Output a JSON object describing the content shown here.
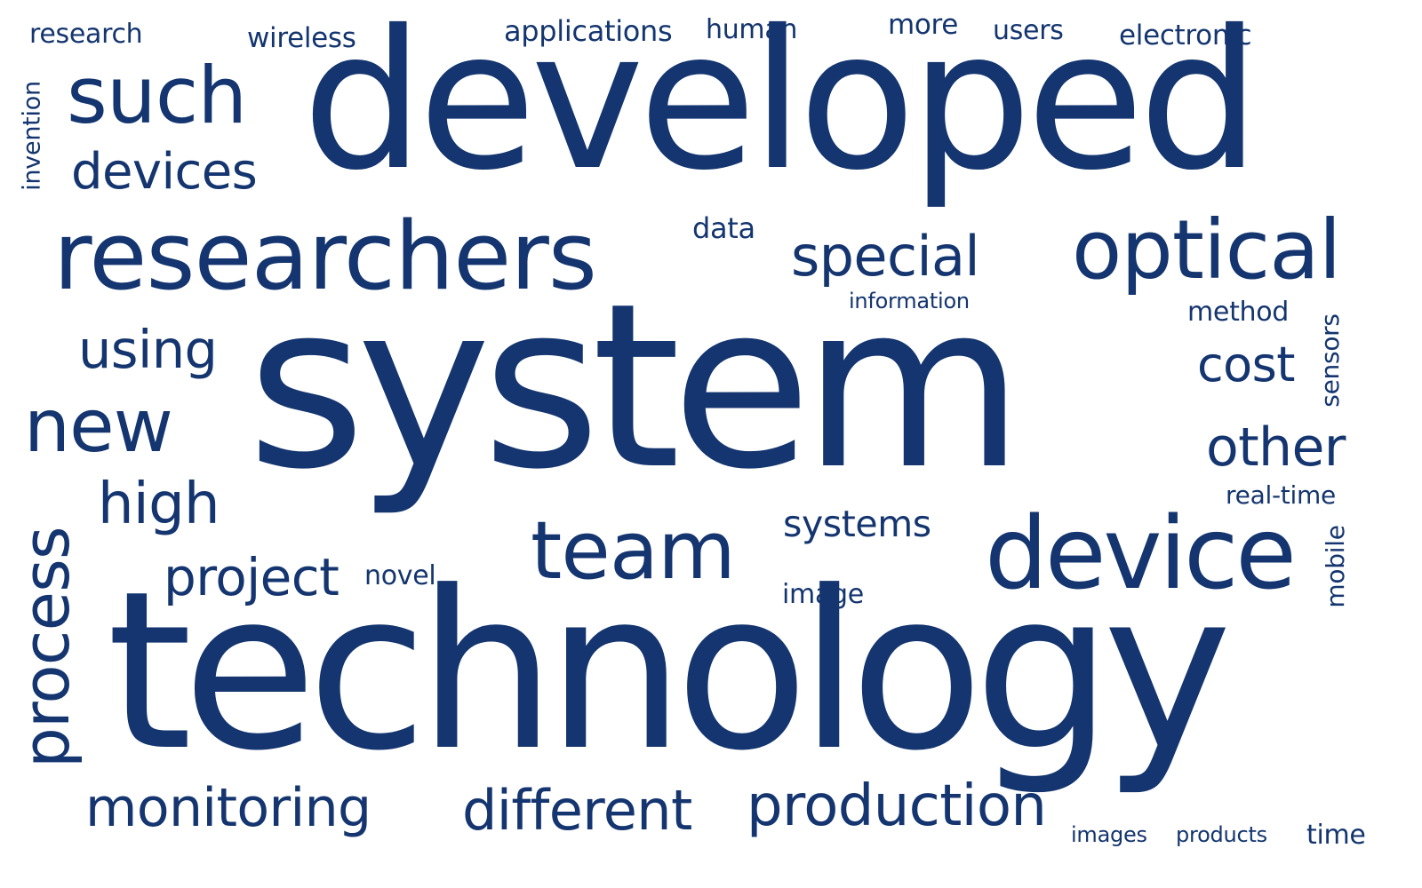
{
  "color": "#14356f",
  "words": {
    "research": "research",
    "wireless": "wireless",
    "applications": "applications",
    "human": "human",
    "more": "more",
    "users": "users",
    "electronic": "electronic",
    "invention": "invention",
    "such": "such",
    "developed": "developed",
    "devices": "devices",
    "researchers": "researchers",
    "data": "data",
    "special": "special",
    "optical": "optical",
    "information": "information",
    "method": "method",
    "using": "using",
    "system": "system",
    "sensors": "sensors",
    "cost": "cost",
    "new": "new",
    "other": "other",
    "high": "high",
    "real_time": "real-time",
    "systems": "systems",
    "team": "team",
    "device": "device",
    "process": "process",
    "project": "project",
    "novel": "novel",
    "mobile": "mobile",
    "image": "image",
    "technology": "technology",
    "monitoring": "monitoring",
    "different": "different",
    "production": "production",
    "images": "images",
    "products": "products",
    "time": "time"
  }
}
